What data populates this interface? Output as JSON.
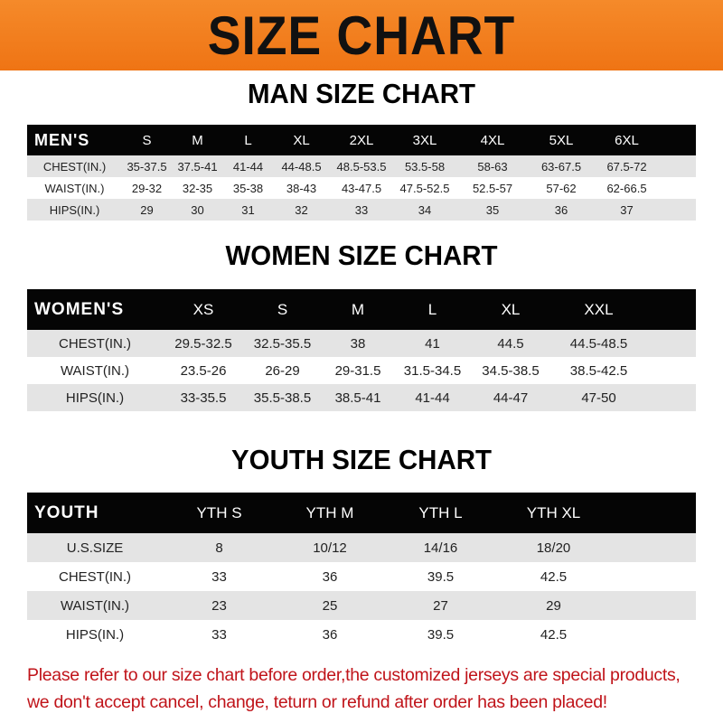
{
  "title": "SIZE CHART",
  "men": {
    "title": "MAN SIZE CHART",
    "header": [
      "MEN'S",
      "S",
      "M",
      "L",
      "XL",
      "2XL",
      "3XL",
      "4XL",
      "5XL",
      "6XL"
    ],
    "rows": [
      [
        "CHEST(IN.)",
        "35-37.5",
        "37.5-41",
        "41-44",
        "44-48.5",
        "48.5-53.5",
        "53.5-58",
        "58-63",
        "63-67.5",
        "67.5-72"
      ],
      [
        "WAIST(IN.)",
        "29-32",
        "32-35",
        "35-38",
        "38-43",
        "43-47.5",
        "47.5-52.5",
        "52.5-57",
        "57-62",
        "62-66.5"
      ],
      [
        "HIPS(IN.)",
        "29",
        "30",
        "31",
        "32",
        "33",
        "34",
        "35",
        "36",
        "37"
      ]
    ]
  },
  "women": {
    "title": "WOMEN SIZE CHART",
    "header": [
      "WOMEN'S",
      "XS",
      "S",
      "M",
      "L",
      "XL",
      "XXL"
    ],
    "rows": [
      [
        "CHEST(IN.)",
        "29.5-32.5",
        "32.5-35.5",
        "38",
        "41",
        "44.5",
        "44.5-48.5"
      ],
      [
        "WAIST(IN.)",
        "23.5-26",
        "26-29",
        "29-31.5",
        "31.5-34.5",
        "34.5-38.5",
        "38.5-42.5"
      ],
      [
        "HIPS(IN.)",
        "33-35.5",
        "35.5-38.5",
        "38.5-41",
        "41-44",
        "44-47",
        "47-50"
      ]
    ]
  },
  "youth": {
    "title": "YOUTH SIZE CHART",
    "header": [
      "YOUTH",
      "YTH S",
      "YTH M",
      "YTH L",
      "YTH XL"
    ],
    "rows": [
      [
        "U.S.SIZE",
        "8",
        "10/12",
        "14/16",
        "18/20"
      ],
      [
        "CHEST(IN.)",
        "33",
        "36",
        "39.5",
        "42.5"
      ],
      [
        "WAIST(IN.)",
        "23",
        "25",
        "27",
        "29"
      ],
      [
        "HIPS(IN.)",
        "33",
        "36",
        "39.5",
        "42.5"
      ]
    ]
  },
  "footer": {
    "line1": "Please refer to our size chart before order,the customized jerseys are special products,",
    "line2": "we don't accept cancel, change, teturn or refund after order has been placed!"
  },
  "colors": {
    "banner": "#ef7414",
    "header_row": "#050505",
    "stripe": "#e4e4e4",
    "notice": "#c0141a"
  }
}
